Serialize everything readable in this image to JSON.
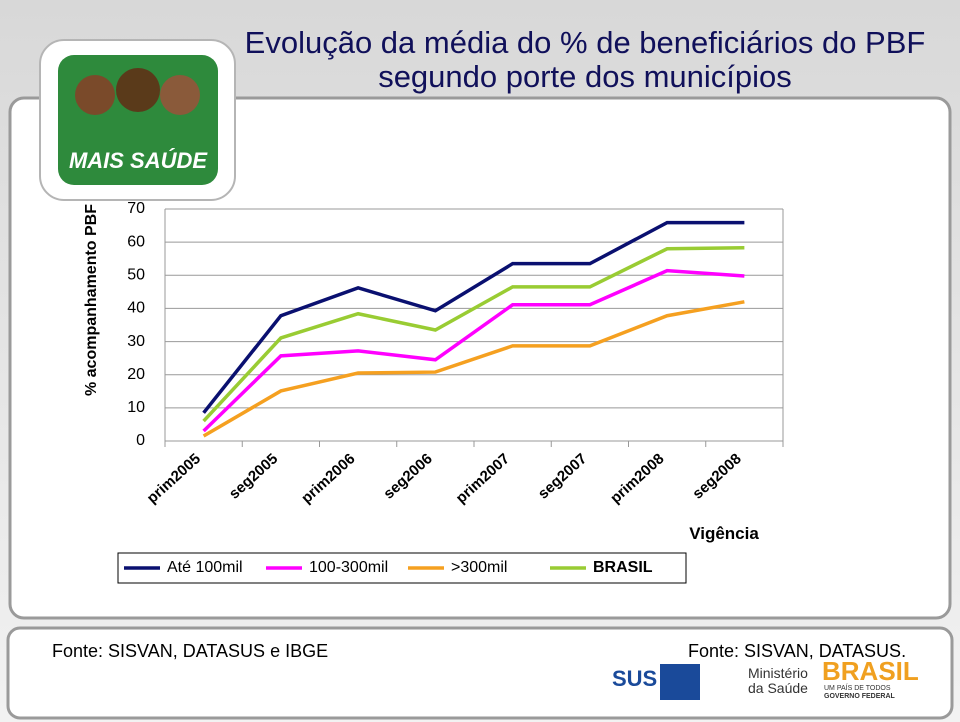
{
  "logo": "MAIS SAÚDE",
  "footer": {
    "left": "Fonte: SISVAN, DATASUS e IBGE",
    "right": "Fonte: SISVAN, DATASUS.",
    "logo_sus": "SUS",
    "logo_ministerio_1": "Ministério",
    "logo_ministerio_2": "da Saúde",
    "logo_brasil": "BRASIL",
    "logo_brasil_sub": "UM PAÍS DE TODOS",
    "logo_governo": "GOVERNO FEDERAL"
  },
  "chart_data": {
    "type": "line",
    "title": "Evolução da média do % de beneficiários do PBF segundo porte dos municípios",
    "y_label": "% acompanhamento PBF",
    "x_label": "Vigência",
    "categories": [
      "prim2005",
      "seg2005",
      "prim2006",
      "seg2006",
      "prim2007",
      "seg2007",
      "prim2008",
      "seg2008"
    ],
    "series": [
      {
        "name": "Até 100mil",
        "color": "#0a1070",
        "values": [
          8.5,
          37.8,
          46.2,
          39.3,
          53.5,
          53.5,
          65.9,
          65.9
        ]
      },
      {
        "name": "100-300mil",
        "color": "#ff00ff",
        "values": [
          3,
          25.7,
          27.2,
          24.5,
          41.1,
          41.1,
          51.4,
          49.8
        ]
      },
      {
        "name": ">300mil",
        "color": "#f5a020",
        "values": [
          1.5,
          15.1,
          20.5,
          20.8,
          28.7,
          28.7,
          37.8,
          42
        ]
      },
      {
        "name": "BRASIL",
        "color": "#99cc33",
        "values": [
          6,
          31.1,
          38.4,
          33.5,
          46.5,
          46.5,
          58,
          58.3
        ]
      }
    ],
    "ylim": [
      0,
      70
    ],
    "yticks": [
      0,
      10,
      20,
      30,
      40,
      50,
      60,
      70
    ],
    "grid": true,
    "legend": "bottom"
  }
}
